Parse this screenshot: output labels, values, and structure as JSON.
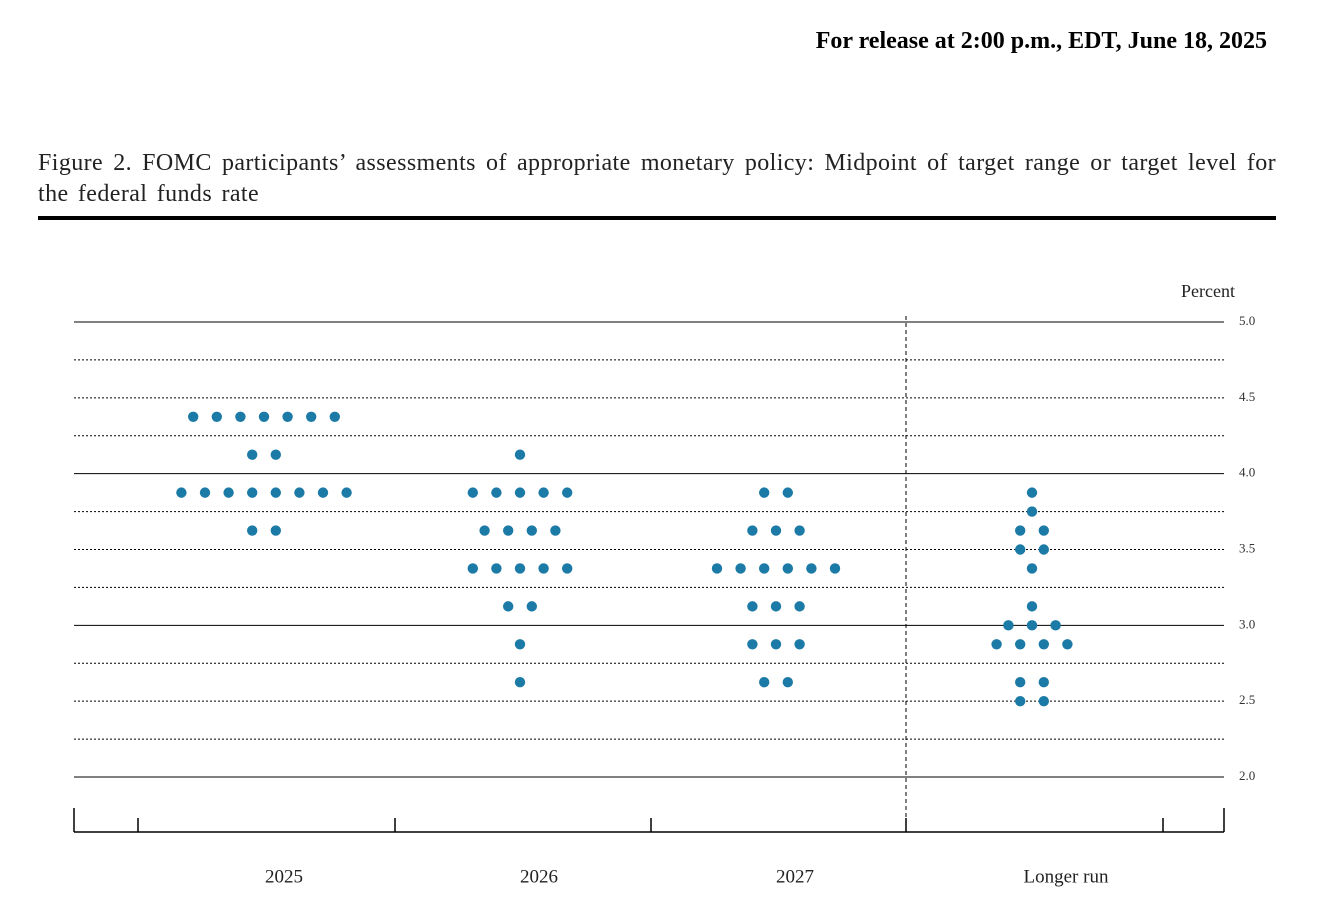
{
  "release_note": "For release at 2:00 p.m., EDT, June 18, 2025",
  "chart_data": {
    "type": "dot",
    "title": "Figure 2.  FOMC participants’ assessments of appropriate monetary policy:  Midpoint of target range or target level for the federal funds rate",
    "y_label": "Percent",
    "categories": [
      "2025",
      "2026",
      "2027",
      "Longer run"
    ],
    "values": [
      [
        4.375,
        4.375,
        4.375,
        4.375,
        4.375,
        4.375,
        4.375,
        4.125,
        4.125,
        3.875,
        3.875,
        3.875,
        3.875,
        3.875,
        3.875,
        3.875,
        3.875,
        3.625,
        3.625
      ],
      [
        4.125,
        3.875,
        3.875,
        3.875,
        3.875,
        3.875,
        3.625,
        3.625,
        3.625,
        3.625,
        3.375,
        3.375,
        3.375,
        3.375,
        3.375,
        3.125,
        3.125,
        2.875,
        2.625
      ],
      [
        3.875,
        3.875,
        3.625,
        3.625,
        3.625,
        3.375,
        3.375,
        3.375,
        3.375,
        3.375,
        3.375,
        3.125,
        3.125,
        3.125,
        2.875,
        2.875,
        2.875,
        2.625,
        2.625
      ],
      [
        3.875,
        3.75,
        3.625,
        3.625,
        3.5,
        3.5,
        3.375,
        3.125,
        3.0,
        3.0,
        3.0,
        2.875,
        2.875,
        2.875,
        2.875,
        2.625,
        2.625,
        2.5,
        2.5
      ]
    ],
    "color": "#1b7aa6",
    "ylim": [
      2,
      5
    ],
    "yticks": [
      {
        "value": 2,
        "label": "2.0"
      },
      2.5,
      {
        "value": 3,
        "label": "3.0"
      },
      3.5,
      {
        "value": 4,
        "label": "4.0"
      },
      4.5,
      {
        "value": 5,
        "label": "5.0"
      }
    ],
    "grid": true
  }
}
